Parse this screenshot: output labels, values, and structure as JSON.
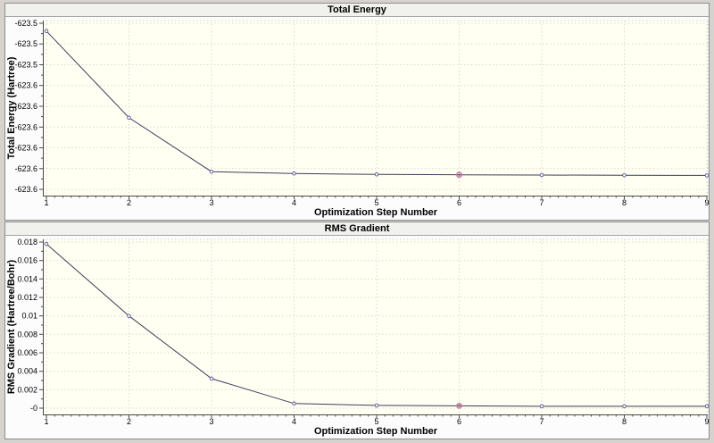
{
  "style": {
    "frame": "#d6d3ce",
    "title_bar_bg": "#f1f1ee",
    "plot_bg": "#fffff2",
    "grid": "#d8d8d6",
    "axis": "#4a4a4a",
    "series_line": "#3e3e5e",
    "point_stroke": "#5353a4",
    "point_fill": "#fffff2",
    "highlight_ring": "#c474a1",
    "highlight_center": "#3a3a3a",
    "text": "#000000"
  },
  "chart_data": [
    {
      "type": "line",
      "title": "Total Energy",
      "xlabel": "Optimization Step Number",
      "ylabel": "Total Energy (Hartree)",
      "x": [
        1,
        2,
        3,
        4,
        5,
        6,
        7,
        8,
        9
      ],
      "values": [
        -623.5238,
        -623.5655,
        -623.5915,
        -623.5924,
        -623.5928,
        -623.593,
        -623.5931,
        -623.5932,
        -623.5933
      ],
      "highlight_index": 5,
      "x_tick_labels": [
        "1",
        "2",
        "3",
        "4",
        "5",
        "6",
        "7",
        "8",
        "9"
      ],
      "y_ticks": {
        "labels": [
          "-623.5",
          "-623.5",
          "-623.5",
          "-623.6",
          "-623.6",
          "-623.6",
          "-623.6",
          "-623.6",
          "-623.6"
        ],
        "values": [
          -623.52,
          -623.53,
          -623.54,
          -623.55,
          -623.56,
          -623.57,
          -623.58,
          -623.59,
          -623.6
        ]
      },
      "xlim": [
        1,
        9
      ],
      "grid": "dotted",
      "legend": "none"
    },
    {
      "type": "line",
      "title": "RMS Gradient",
      "xlabel": "Optimization Step Number",
      "ylabel": "RMS Gradient (Hartree/Bohr)",
      "x": [
        1,
        2,
        3,
        4,
        5,
        6,
        7,
        8,
        9
      ],
      "values": [
        0.0178,
        0.01,
        0.0032,
        0.0005,
        0.0003,
        0.00025,
        0.0002,
        0.0002,
        0.0002
      ],
      "highlight_index": 5,
      "x_tick_labels": [
        "1",
        "2",
        "3",
        "4",
        "5",
        "6",
        "7",
        "8",
        "9"
      ],
      "y_ticks": {
        "labels": [
          "0.018",
          "0.016",
          "0.014",
          "0.012",
          "0.01",
          "0.008",
          "0.006",
          "0.004",
          "0.002",
          "-0"
        ],
        "values": [
          0.018,
          0.016,
          0.014,
          0.012,
          0.01,
          0.008,
          0.006,
          0.004,
          0.002,
          0.0
        ]
      },
      "xlim": [
        1,
        9
      ],
      "grid": "dotted",
      "legend": "none"
    }
  ]
}
